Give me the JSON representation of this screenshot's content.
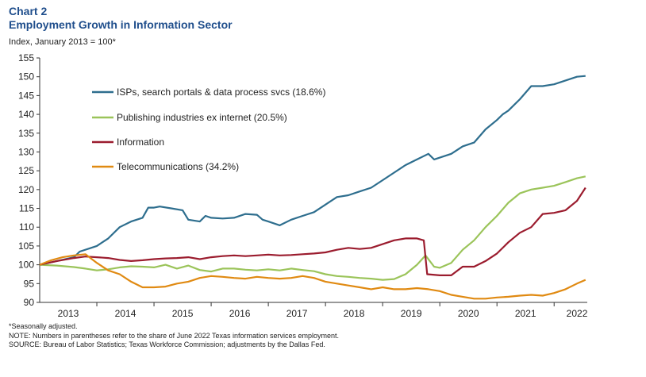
{
  "header": {
    "chart_label": "Chart 2",
    "title": "Employment Growth in Information Sector",
    "subtitle": "Index, January 2013 = 100*"
  },
  "notes": [
    "*Seasonally adjusted.",
    "NOTE: Numbers in parentheses refer to the share of June 2022 Texas information services employment.",
    "SOURCE: Bureau of Labor Statistics; Texas Workforce Commission; adjustments by the Dallas Fed."
  ],
  "chart_data": {
    "type": "line",
    "title": "Employment Growth in Information Sector",
    "ylabel": "Index, January 2013 = 100*",
    "ylim": [
      90,
      155
    ],
    "xlim": [
      2013.0,
      2022.58
    ],
    "yticks": [
      90,
      95,
      100,
      105,
      110,
      115,
      120,
      125,
      130,
      135,
      140,
      145,
      150,
      155
    ],
    "xticks": [
      {
        "label": "2013",
        "x": 2013.5
      },
      {
        "label": "2014",
        "x": 2014.5
      },
      {
        "label": "2015",
        "x": 2015.5
      },
      {
        "label": "2016",
        "x": 2016.5
      },
      {
        "label": "2017",
        "x": 2017.5
      },
      {
        "label": "2018",
        "x": 2018.5
      },
      {
        "label": "2019",
        "x": 2019.5
      },
      {
        "label": "2020",
        "x": 2020.5
      },
      {
        "label": "2021",
        "x": 2021.5
      },
      {
        "label": "2022",
        "x": 2022.4
      }
    ],
    "grid": false,
    "legend_position": "top-left",
    "series": [
      {
        "name": "ISPs, search portals & data process svcs (18.6%)",
        "color": "#2e6e8e",
        "x": [
          2013.0,
          2013.3,
          2013.6,
          2013.7,
          2013.9,
          2014.0,
          2014.2,
          2014.4,
          2014.6,
          2014.8,
          2014.9,
          2015.0,
          2015.1,
          2015.3,
          2015.5,
          2015.6,
          2015.8,
          2015.9,
          2016.0,
          2016.2,
          2016.4,
          2016.6,
          2016.8,
          2016.9,
          2017.0,
          2017.2,
          2017.4,
          2017.6,
          2017.8,
          2018.0,
          2018.2,
          2018.4,
          2018.6,
          2018.8,
          2019.0,
          2019.2,
          2019.4,
          2019.6,
          2019.8,
          2019.9,
          2020.0,
          2020.2,
          2020.4,
          2020.6,
          2020.8,
          2021.0,
          2021.1,
          2021.2,
          2021.4,
          2021.6,
          2021.8,
          2022.0,
          2022.2,
          2022.4,
          2022.55
        ],
        "y": [
          100,
          101.0,
          102.0,
          103.5,
          104.5,
          105.0,
          107.0,
          110.0,
          111.5,
          112.5,
          115.2,
          115.2,
          115.5,
          115.0,
          114.5,
          112.0,
          111.5,
          113.0,
          112.5,
          112.3,
          112.5,
          113.5,
          113.3,
          112.0,
          111.5,
          110.5,
          112.0,
          113.0,
          114.0,
          116.0,
          118.0,
          118.5,
          119.5,
          120.5,
          122.5,
          124.5,
          126.5,
          128.0,
          129.5,
          128.0,
          128.5,
          129.5,
          131.5,
          132.5,
          136.0,
          138.5,
          140.0,
          141.0,
          144.0,
          147.5,
          147.5,
          148.0,
          149.0,
          150.0,
          150.2
        ]
      },
      {
        "name": "Publishing industries ex internet (20.5%)",
        "color": "#9bc45a",
        "x": [
          2013.0,
          2013.3,
          2013.6,
          2013.8,
          2014.0,
          2014.2,
          2014.4,
          2014.6,
          2014.8,
          2015.0,
          2015.2,
          2015.4,
          2015.6,
          2015.8,
          2016.0,
          2016.2,
          2016.4,
          2016.6,
          2016.8,
          2017.0,
          2017.2,
          2017.4,
          2017.6,
          2017.8,
          2018.0,
          2018.2,
          2018.4,
          2018.6,
          2018.8,
          2019.0,
          2019.2,
          2019.4,
          2019.6,
          2019.75,
          2019.9,
          2020.0,
          2020.2,
          2020.4,
          2020.6,
          2020.8,
          2021.0,
          2021.2,
          2021.4,
          2021.6,
          2021.8,
          2022.0,
          2022.2,
          2022.4,
          2022.55
        ],
        "y": [
          100,
          99.8,
          99.4,
          99.0,
          98.5,
          98.8,
          99.3,
          99.6,
          99.5,
          99.3,
          100.0,
          99.0,
          99.8,
          98.6,
          98.2,
          99.0,
          99.0,
          98.7,
          98.5,
          98.8,
          98.5,
          99.0,
          98.6,
          98.3,
          97.5,
          97.0,
          96.8,
          96.5,
          96.3,
          96.0,
          96.2,
          97.5,
          100.0,
          102.5,
          99.5,
          99.2,
          100.5,
          104.0,
          106.5,
          110.0,
          113.0,
          116.5,
          119.0,
          120.0,
          120.5,
          121.0,
          122.0,
          123.0,
          123.5
        ]
      },
      {
        "name": "Information",
        "color": "#9b1c2e",
        "x": [
          2013.0,
          2013.3,
          2013.6,
          2013.8,
          2014.0,
          2014.2,
          2014.4,
          2014.6,
          2014.8,
          2015.0,
          2015.2,
          2015.4,
          2015.6,
          2015.8,
          2016.0,
          2016.2,
          2016.4,
          2016.6,
          2016.8,
          2017.0,
          2017.2,
          2017.4,
          2017.6,
          2017.8,
          2018.0,
          2018.2,
          2018.4,
          2018.6,
          2018.8,
          2019.0,
          2019.2,
          2019.4,
          2019.6,
          2019.72,
          2019.78,
          2020.0,
          2020.2,
          2020.4,
          2020.6,
          2020.8,
          2021.0,
          2021.2,
          2021.4,
          2021.6,
          2021.8,
          2022.0,
          2022.2,
          2022.4,
          2022.55
        ],
        "y": [
          100,
          101.0,
          101.8,
          102.2,
          102.0,
          101.8,
          101.3,
          101.0,
          101.2,
          101.5,
          101.7,
          101.8,
          102.0,
          101.5,
          102.0,
          102.3,
          102.5,
          102.3,
          102.5,
          102.7,
          102.5,
          102.6,
          102.8,
          103.0,
          103.3,
          104.0,
          104.5,
          104.2,
          104.5,
          105.5,
          106.5,
          107.0,
          107.0,
          106.5,
          97.5,
          97.2,
          97.2,
          99.5,
          99.5,
          101.0,
          103.0,
          106.0,
          108.5,
          110.0,
          113.5,
          113.8,
          114.5,
          117.0,
          120.5
        ]
      },
      {
        "name": "Telecommunications (34.2%)",
        "color": "#e08a12",
        "x": [
          2013.0,
          2013.2,
          2013.4,
          2013.6,
          2013.8,
          2014.0,
          2014.2,
          2014.4,
          2014.6,
          2014.8,
          2015.0,
          2015.2,
          2015.4,
          2015.6,
          2015.8,
          2016.0,
          2016.2,
          2016.4,
          2016.6,
          2016.8,
          2017.0,
          2017.2,
          2017.4,
          2017.6,
          2017.8,
          2018.0,
          2018.2,
          2018.4,
          2018.6,
          2018.8,
          2019.0,
          2019.2,
          2019.4,
          2019.6,
          2019.8,
          2020.0,
          2020.2,
          2020.4,
          2020.6,
          2020.8,
          2021.0,
          2021.2,
          2021.4,
          2021.6,
          2021.8,
          2022.0,
          2022.2,
          2022.4,
          2022.55
        ],
        "y": [
          100,
          101.2,
          102.0,
          102.5,
          102.8,
          100.5,
          98.5,
          97.5,
          95.5,
          94.0,
          94.0,
          94.2,
          95.0,
          95.5,
          96.5,
          97.0,
          96.8,
          96.5,
          96.3,
          96.8,
          96.5,
          96.3,
          96.5,
          97.0,
          96.5,
          95.5,
          95.0,
          94.5,
          94.0,
          93.5,
          94.0,
          93.5,
          93.5,
          93.8,
          93.5,
          93.0,
          92.0,
          91.5,
          91.0,
          91.0,
          91.3,
          91.5,
          91.8,
          92.0,
          91.8,
          92.5,
          93.5,
          95.0,
          96.0
        ]
      }
    ]
  }
}
